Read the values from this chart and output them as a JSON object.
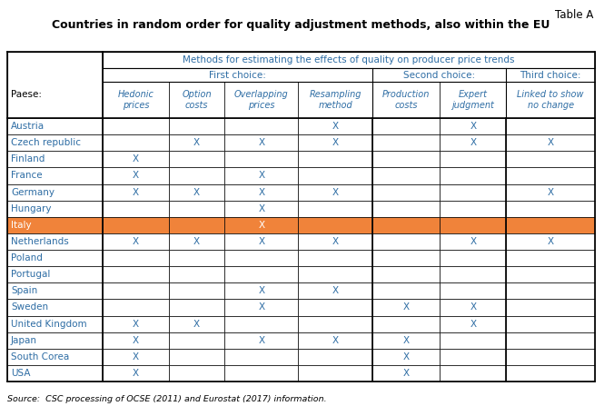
{
  "table_label": "Table A",
  "title": "Countries in random order for quality adjustment methods, also within the EU",
  "header_row1": "Methods for estimating the effects of quality on producer price trends",
  "header_first_choice": "First choice:",
  "header_second_choice": "Second choice:",
  "header_third_choice": "Third choice:",
  "col_headers": [
    "Hedonic\nprices",
    "Option\ncosts",
    "Overlapping\nprices",
    "Resampling\nmethod",
    "Production\ncosts",
    "Expert\njudgment",
    "Linked to show\nno change"
  ],
  "paese_label": "Paese:",
  "countries": [
    "Austria",
    "Czech republic",
    "Finland",
    "France",
    "Germany",
    "Hungary",
    "Italy",
    "Netherlands",
    "Poland",
    "Portugal",
    "Spain",
    "Sweden",
    "United Kingdom",
    "Japan",
    "South Corea",
    "USA"
  ],
  "italy_index": 6,
  "data": [
    [
      0,
      0,
      0,
      1,
      0,
      1,
      0
    ],
    [
      0,
      1,
      1,
      1,
      0,
      1,
      1
    ],
    [
      1,
      0,
      0,
      0,
      0,
      0,
      0
    ],
    [
      1,
      0,
      1,
      0,
      0,
      0,
      0
    ],
    [
      1,
      1,
      1,
      1,
      0,
      0,
      1
    ],
    [
      0,
      0,
      1,
      0,
      0,
      0,
      0
    ],
    [
      0,
      0,
      1,
      0,
      0,
      0,
      0
    ],
    [
      1,
      1,
      1,
      1,
      0,
      1,
      1
    ],
    [
      0,
      0,
      0,
      0,
      0,
      0,
      0
    ],
    [
      0,
      0,
      0,
      0,
      0,
      0,
      0
    ],
    [
      0,
      0,
      1,
      1,
      0,
      0,
      0
    ],
    [
      0,
      0,
      1,
      0,
      1,
      1,
      0
    ],
    [
      1,
      1,
      0,
      0,
      0,
      1,
      0
    ],
    [
      1,
      0,
      1,
      1,
      1,
      0,
      0
    ],
    [
      1,
      0,
      0,
      0,
      1,
      0,
      0
    ],
    [
      1,
      0,
      0,
      0,
      1,
      0,
      0
    ]
  ],
  "source_text": "Source:  CSC processing of OCSE (2011) and Eurostat (2017) information.",
  "italy_bg_color": "#F0833A",
  "header_text_color": "#2E6DA4",
  "country_text_color": "#2E6DA4",
  "border_color": "#000000",
  "x_marker": "X",
  "background": "#FFFFFF"
}
